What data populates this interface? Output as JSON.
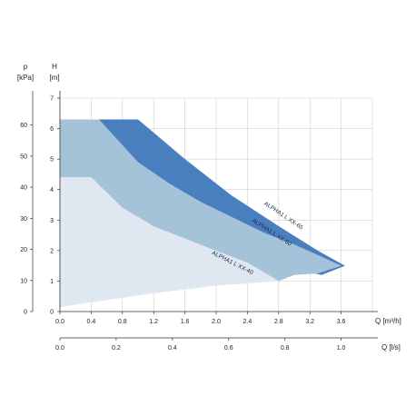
{
  "chart_data": {
    "type": "area",
    "axes": {
      "x_primary": {
        "label": "Q [m³/h]",
        "range": [
          0,
          4.0
        ],
        "ticks": [
          0.0,
          0.4,
          0.8,
          1.2,
          1.6,
          2.0,
          2.4,
          2.8,
          3.2,
          3.6
        ],
        "tick_labels": [
          "0.0",
          "0.4",
          "0.8",
          "1.2",
          "1.6",
          "2.0",
          "2.4",
          "2.8",
          "3.2",
          "3.6"
        ]
      },
      "x_secondary": {
        "label": "Q [l/s]",
        "ticks": [
          0.0,
          0.2,
          0.4,
          0.6,
          0.8,
          1.0
        ],
        "tick_labels": [
          "0.0",
          "0.2",
          "0.4",
          "0.6",
          "0.8",
          "1.0"
        ]
      },
      "y_head": {
        "label_symbol": "H",
        "label_unit": "[m]",
        "range": [
          0,
          7
        ],
        "ticks": [
          0,
          1,
          2,
          3,
          4,
          5,
          6,
          7
        ],
        "tick_labels": [
          "0",
          "1",
          "2",
          "3",
          "4",
          "5",
          "6",
          "7"
        ]
      },
      "y_pressure": {
        "label_symbol": "p",
        "label_unit": "[kPa]",
        "ticks": [
          0,
          10,
          20,
          30,
          40,
          50,
          60,
          70
        ],
        "tick_labels": [
          "0",
          "10",
          "20",
          "30",
          "40",
          "50",
          "60",
          "70"
        ]
      }
    },
    "grid": true,
    "series": [
      {
        "name": "ALPHA1 L XX-65",
        "color": "#4a7fbf",
        "outline": [
          [
            0.5,
            6.3
          ],
          [
            1.0,
            6.3
          ],
          [
            1.6,
            5.0
          ],
          [
            2.2,
            3.8
          ],
          [
            2.8,
            2.8
          ],
          [
            3.3,
            2.0
          ],
          [
            3.65,
            1.5
          ],
          [
            3.6,
            1.45
          ],
          [
            3.35,
            1.2
          ],
          [
            3.0,
            1.4
          ],
          [
            2.4,
            1.7
          ],
          [
            1.8,
            2.0
          ],
          [
            1.4,
            2.3
          ],
          [
            1.0,
            3.2
          ],
          [
            0.7,
            5.0
          ],
          [
            0.5,
            6.3
          ]
        ]
      },
      {
        "name": "ALPHA1 L XX-60",
        "color": "#a5c3d8",
        "outline": [
          [
            0.0,
            6.3
          ],
          [
            0.5,
            6.3
          ],
          [
            1.0,
            4.9
          ],
          [
            1.4,
            4.2
          ],
          [
            1.8,
            3.6
          ],
          [
            2.2,
            3.1
          ],
          [
            2.6,
            2.6
          ],
          [
            3.0,
            2.2
          ],
          [
            3.35,
            1.8
          ],
          [
            3.6,
            1.5
          ],
          [
            3.3,
            1.25
          ],
          [
            3.0,
            1.2
          ],
          [
            2.8,
            1.0
          ],
          [
            2.4,
            1.6
          ],
          [
            2.0,
            2.0
          ],
          [
            1.6,
            2.4
          ],
          [
            1.2,
            2.8
          ],
          [
            0.8,
            3.4
          ],
          [
            0.4,
            4.4
          ],
          [
            0.0,
            4.4
          ],
          [
            0.0,
            6.3
          ]
        ]
      },
      {
        "name": "ALPHA1 L XX-40",
        "color": "#dfe8f0",
        "outline": [
          [
            0.0,
            4.4
          ],
          [
            0.4,
            4.4
          ],
          [
            0.8,
            3.4
          ],
          [
            1.2,
            2.8
          ],
          [
            1.6,
            2.4
          ],
          [
            2.0,
            2.0
          ],
          [
            2.4,
            1.6
          ],
          [
            2.8,
            1.0
          ],
          [
            2.0,
            0.85
          ],
          [
            1.2,
            0.6
          ],
          [
            0.4,
            0.3
          ],
          [
            0.0,
            0.15
          ],
          [
            0.0,
            4.4
          ]
        ]
      }
    ]
  }
}
